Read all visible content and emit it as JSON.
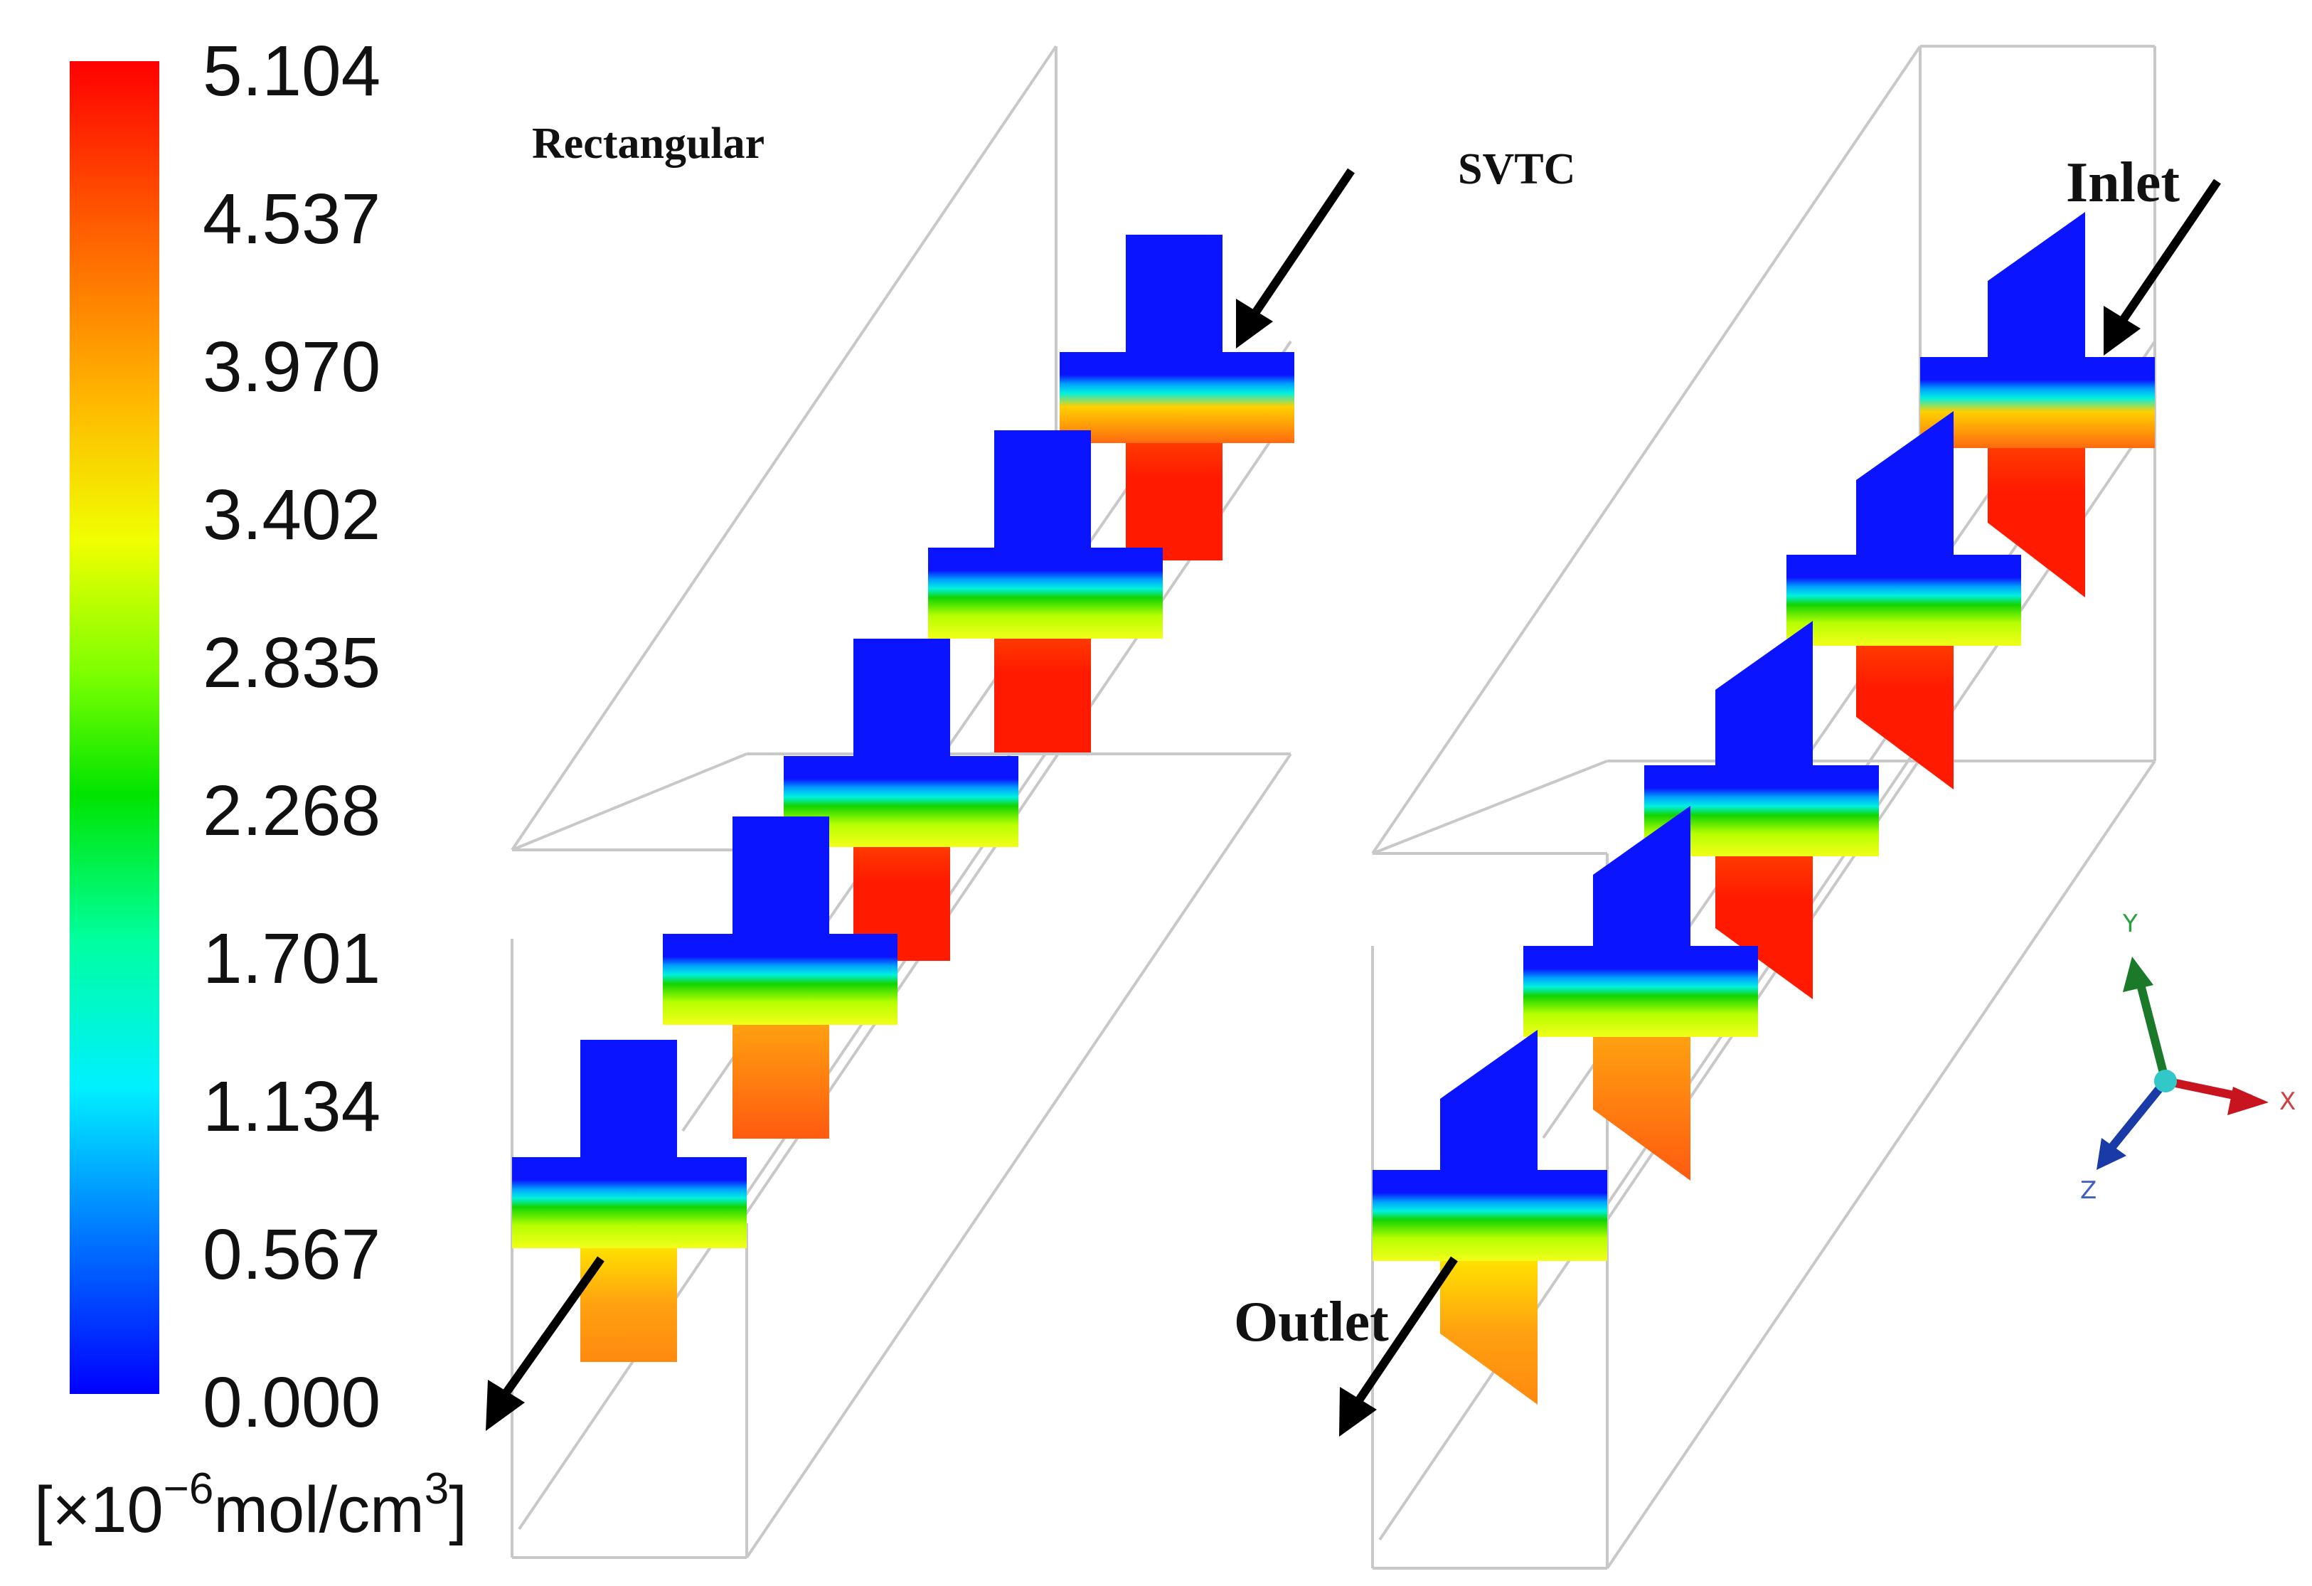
{
  "colorbar": {
    "ticks": [
      "5.104",
      "4.537",
      "3.970",
      "3.402",
      "2.835",
      "2.268",
      "1.701",
      "1.134",
      "0.567",
      "0.000"
    ],
    "unit_prefix": "[×10",
    "unit_exp": "−6",
    "unit_mid": "mol/cm",
    "unit_exp2": "3",
    "unit_suffix": "]",
    "min": 0.0,
    "max": 5.104
  },
  "panels": {
    "left_title": "Rectangular",
    "right_title": "SVTC"
  },
  "labels": {
    "inlet": "Inlet",
    "outlet": "Outlet"
  },
  "axes": {
    "x": "X",
    "y": "Y",
    "z": "Z"
  },
  "colors": {
    "blue": "#0a14ff",
    "red": "#ff1a00",
    "orange": "#ff7a12",
    "yellow": "#f2ff1a",
    "green": "#12d400",
    "cyan": "#00f0ff"
  }
}
